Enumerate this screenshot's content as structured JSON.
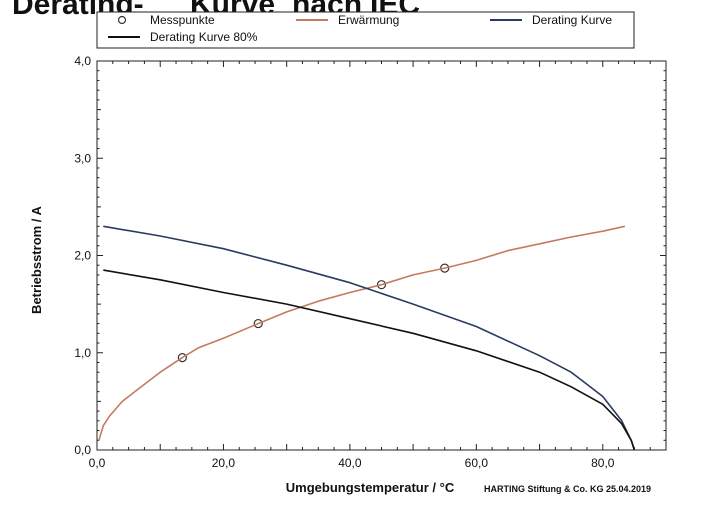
{
  "chart_data": {
    "type": "line",
    "title": "",
    "xlabel": "Umgebungstemperatur / °C",
    "ylabel": "Betriebsstrom / A",
    "xlim": [
      0,
      90
    ],
    "ylim": [
      0,
      4
    ],
    "x_ticks": [
      0,
      20,
      40,
      60,
      80
    ],
    "x_tick_labels": [
      "0,0",
      "20,0",
      "40,0",
      "60,0",
      "80,0"
    ],
    "y_ticks": [
      0,
      1,
      2,
      3,
      4
    ],
    "y_tick_labels": [
      "0,0",
      "1,0",
      "2,0",
      "3,0",
      "4,0"
    ],
    "grid": false,
    "legend_position": "top",
    "series": [
      {
        "name": "Messpunkte",
        "style": "markers",
        "color": "#333333",
        "points": [
          [
            13.5,
            0.95
          ],
          [
            25.5,
            1.3
          ],
          [
            45,
            1.7
          ],
          [
            55,
            1.87
          ]
        ]
      },
      {
        "name": "Erwärmung",
        "style": "line",
        "color": "#c47a60",
        "points": [
          [
            0.3,
            0.1
          ],
          [
            1,
            0.25
          ],
          [
            2,
            0.35
          ],
          [
            4,
            0.5
          ],
          [
            6,
            0.6
          ],
          [
            8,
            0.7
          ],
          [
            10,
            0.8
          ],
          [
            13.5,
            0.95
          ],
          [
            16,
            1.05
          ],
          [
            20,
            1.15
          ],
          [
            25.5,
            1.3
          ],
          [
            30,
            1.42
          ],
          [
            35,
            1.53
          ],
          [
            40,
            1.62
          ],
          [
            45,
            1.7
          ],
          [
            50,
            1.8
          ],
          [
            55,
            1.87
          ],
          [
            60,
            1.95
          ],
          [
            65,
            2.05
          ],
          [
            70,
            2.12
          ],
          [
            75,
            2.19
          ],
          [
            80,
            2.25
          ],
          [
            83.5,
            2.3
          ]
        ]
      },
      {
        "name": "Derating Kurve",
        "style": "line",
        "color": "#2a3a60",
        "points": [
          [
            1,
            2.3
          ],
          [
            10,
            2.2
          ],
          [
            20,
            2.07
          ],
          [
            30,
            1.9
          ],
          [
            40,
            1.72
          ],
          [
            50,
            1.5
          ],
          [
            60,
            1.27
          ],
          [
            70,
            0.97
          ],
          [
            75,
            0.8
          ],
          [
            80,
            0.55
          ],
          [
            83,
            0.3
          ],
          [
            84.5,
            0.1
          ],
          [
            85,
            0
          ]
        ]
      },
      {
        "name": "Derating Kurve 80%",
        "style": "line",
        "color": "#111111",
        "points": [
          [
            1,
            1.85
          ],
          [
            10,
            1.75
          ],
          [
            20,
            1.62
          ],
          [
            30,
            1.5
          ],
          [
            40,
            1.35
          ],
          [
            50,
            1.2
          ],
          [
            60,
            1.02
          ],
          [
            70,
            0.8
          ],
          [
            75,
            0.65
          ],
          [
            80,
            0.47
          ],
          [
            83,
            0.27
          ],
          [
            84.5,
            0.1
          ],
          [
            85,
            0
          ]
        ]
      }
    ]
  },
  "footer": "HARTING Stiftung & Co. KG 25.04.2019",
  "title_fragments": [
    "Derating-",
    "Kurve",
    "nach",
    "IEC"
  ]
}
